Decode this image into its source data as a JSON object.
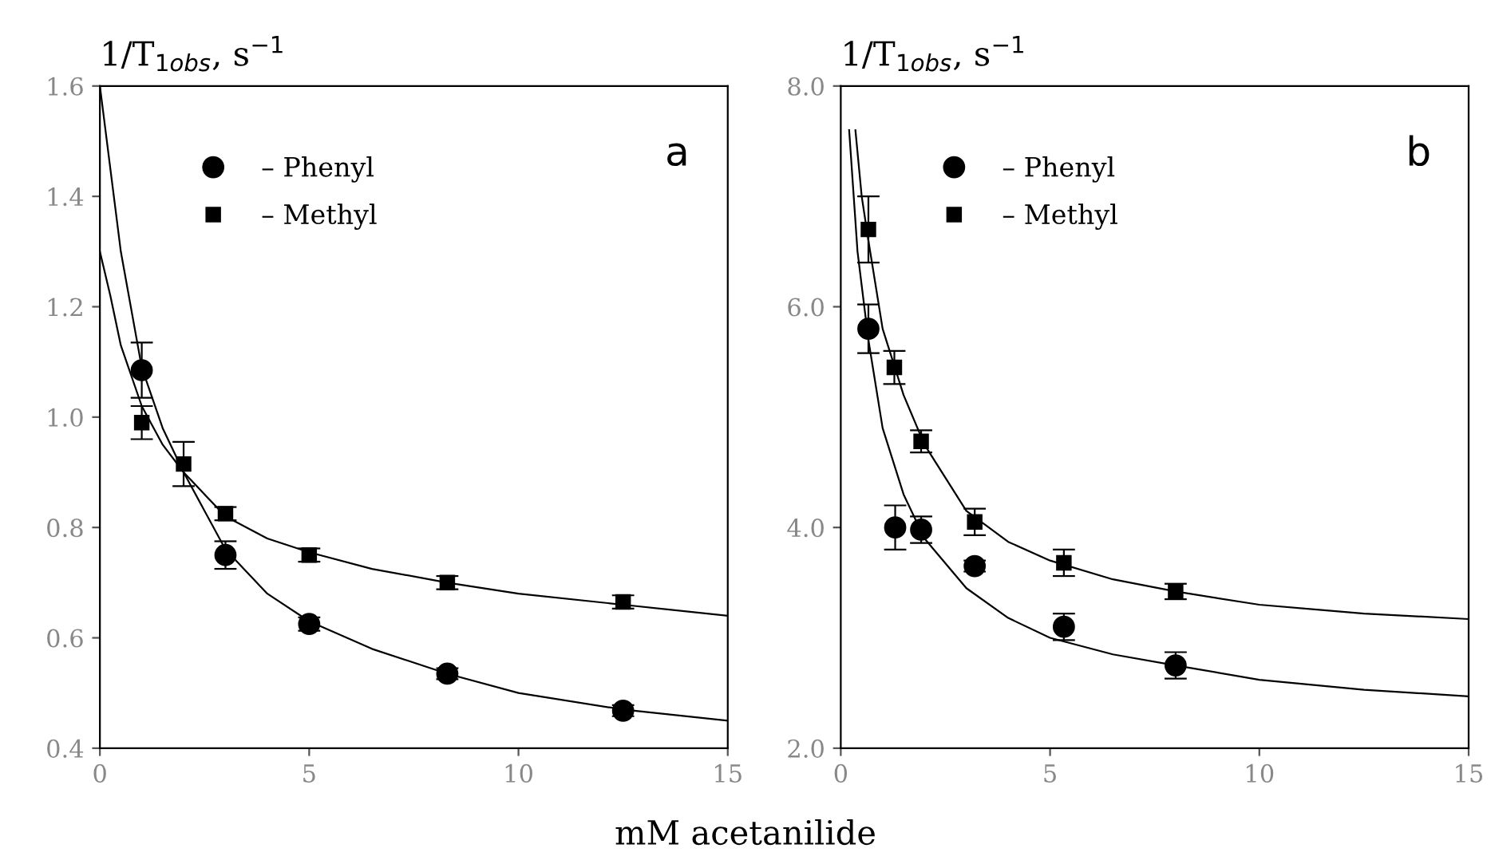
{
  "chart_data": [
    {
      "type": "scatter",
      "ylabel": "1/T$_{1obs}$, s$^{−1}$",
      "xlabel": "mM acetanilide",
      "annotations": [
        "a"
      ],
      "legend": "top left",
      "grid": false,
      "xlim": [
        0,
        15
      ],
      "xticks": [
        0,
        5,
        10,
        15
      ],
      "ylim": [
        0.4,
        1.6
      ],
      "yticks": [
        {
          "value": 0.4,
          "label": "0.4"
        },
        {
          "value": 0.6,
          "label": "0.6"
        },
        {
          "value": 0.8,
          "label": "0.8"
        },
        {
          "value": 1.0,
          "label": "1.0"
        },
        {
          "value": 1.2,
          "label": "1.2"
        },
        {
          "value": 1.4,
          "label": "1.4"
        },
        {
          "value": 1.6,
          "label": "1.6"
        }
      ],
      "series": [
        {
          "name": "– Phenyl",
          "marker": "circle",
          "color": "#000000",
          "x": [
            1,
            2,
            3,
            5,
            8.3,
            12.5
          ],
          "values": [
            1.085,
            null,
            0.75,
            0.625,
            0.535,
            0.468
          ],
          "errors": [
            0.05,
            null,
            0.025,
            0.012,
            0.01,
            0.01
          ]
        },
        {
          "name": "– Methyl",
          "marker": "square",
          "color": "#000000",
          "x": [
            1,
            2,
            3,
            5,
            8.3,
            12.5
          ],
          "values": [
            0.99,
            0.915,
            0.825,
            0.75,
            0.7,
            0.665
          ],
          "errors": [
            0.03,
            0.04,
            0.012,
            0.012,
            0.012,
            0.012
          ]
        },
        {
          "type": "line",
          "line_style": "solid",
          "color": "#000000",
          "x": [
            0,
            0.25,
            0.5,
            1,
            1.5,
            2,
            3,
            4,
            5,
            6.5,
            8.3,
            10,
            12.5,
            15
          ],
          "values": [
            1.6,
            1.45,
            1.3,
            1.09,
            0.98,
            0.9,
            0.76,
            0.68,
            0.63,
            0.58,
            0.535,
            0.5,
            0.47,
            0.45
          ]
        },
        {
          "type": "line",
          "line_style": "solid",
          "color": "#000000",
          "x": [
            0,
            0.25,
            0.5,
            1,
            1.5,
            2,
            3,
            4,
            5,
            6.5,
            8.3,
            10,
            12.5,
            15
          ],
          "values": [
            1.3,
            1.22,
            1.13,
            1.02,
            0.95,
            0.9,
            0.82,
            0.78,
            0.755,
            0.725,
            0.7,
            0.68,
            0.66,
            0.64
          ]
        }
      ]
    },
    {
      "type": "scatter",
      "ylabel": "1/T$_{1obs}$, s$^{−1}$",
      "annotations": [
        "b"
      ],
      "legend": "top left",
      "grid": false,
      "xlim": [
        0,
        15
      ],
      "xticks": [
        0,
        5,
        10,
        15
      ],
      "ylim": [
        2.0,
        8.0
      ],
      "yticks": [
        {
          "value": 2.0,
          "label": "2.0"
        },
        {
          "value": 4.0,
          "label": "4.0"
        },
        {
          "value": 6.0,
          "label": "6.0"
        },
        {
          "value": 8.0,
          "label": "8.0"
        }
      ],
      "series": [
        {
          "name": "– Phenyl",
          "marker": "circle",
          "color": "#000000",
          "x": [
            0.66,
            1.3,
            1.92,
            3.2,
            5.33,
            8.0
          ],
          "values": [
            5.8,
            4.0,
            3.98,
            3.65,
            3.1,
            2.75
          ],
          "errors": [
            0.22,
            0.2,
            0.12,
            0.05,
            0.12,
            0.12
          ]
        },
        {
          "name": "– Methyl",
          "marker": "square",
          "color": "#000000",
          "x": [
            0.66,
            1.28,
            1.92,
            3.2,
            5.33,
            8.0
          ],
          "values": [
            6.7,
            5.45,
            4.78,
            4.05,
            3.68,
            3.42
          ],
          "errors": [
            0.3,
            0.15,
            0.1,
            0.12,
            0.12,
            0.07
          ]
        },
        {
          "type": "line",
          "line_style": "solid",
          "color": "#000000",
          "x": [
            0.2,
            0.4,
            0.66,
            1,
            1.5,
            2,
            3,
            4,
            5,
            6.5,
            8,
            10,
            12.5,
            15
          ],
          "values": [
            7.6,
            6.5,
            5.7,
            4.9,
            4.3,
            3.9,
            3.45,
            3.18,
            3.0,
            2.85,
            2.75,
            2.62,
            2.53,
            2.47
          ]
        },
        {
          "type": "line",
          "line_style": "solid",
          "color": "#000000",
          "x": [
            0.35,
            0.5,
            0.66,
            1,
            1.5,
            2,
            3,
            4,
            5,
            6.5,
            8,
            10,
            12.5,
            15
          ],
          "values": [
            7.6,
            7.0,
            6.6,
            5.8,
            5.2,
            4.75,
            4.15,
            3.87,
            3.7,
            3.53,
            3.42,
            3.3,
            3.22,
            3.17
          ]
        }
      ]
    }
  ]
}
